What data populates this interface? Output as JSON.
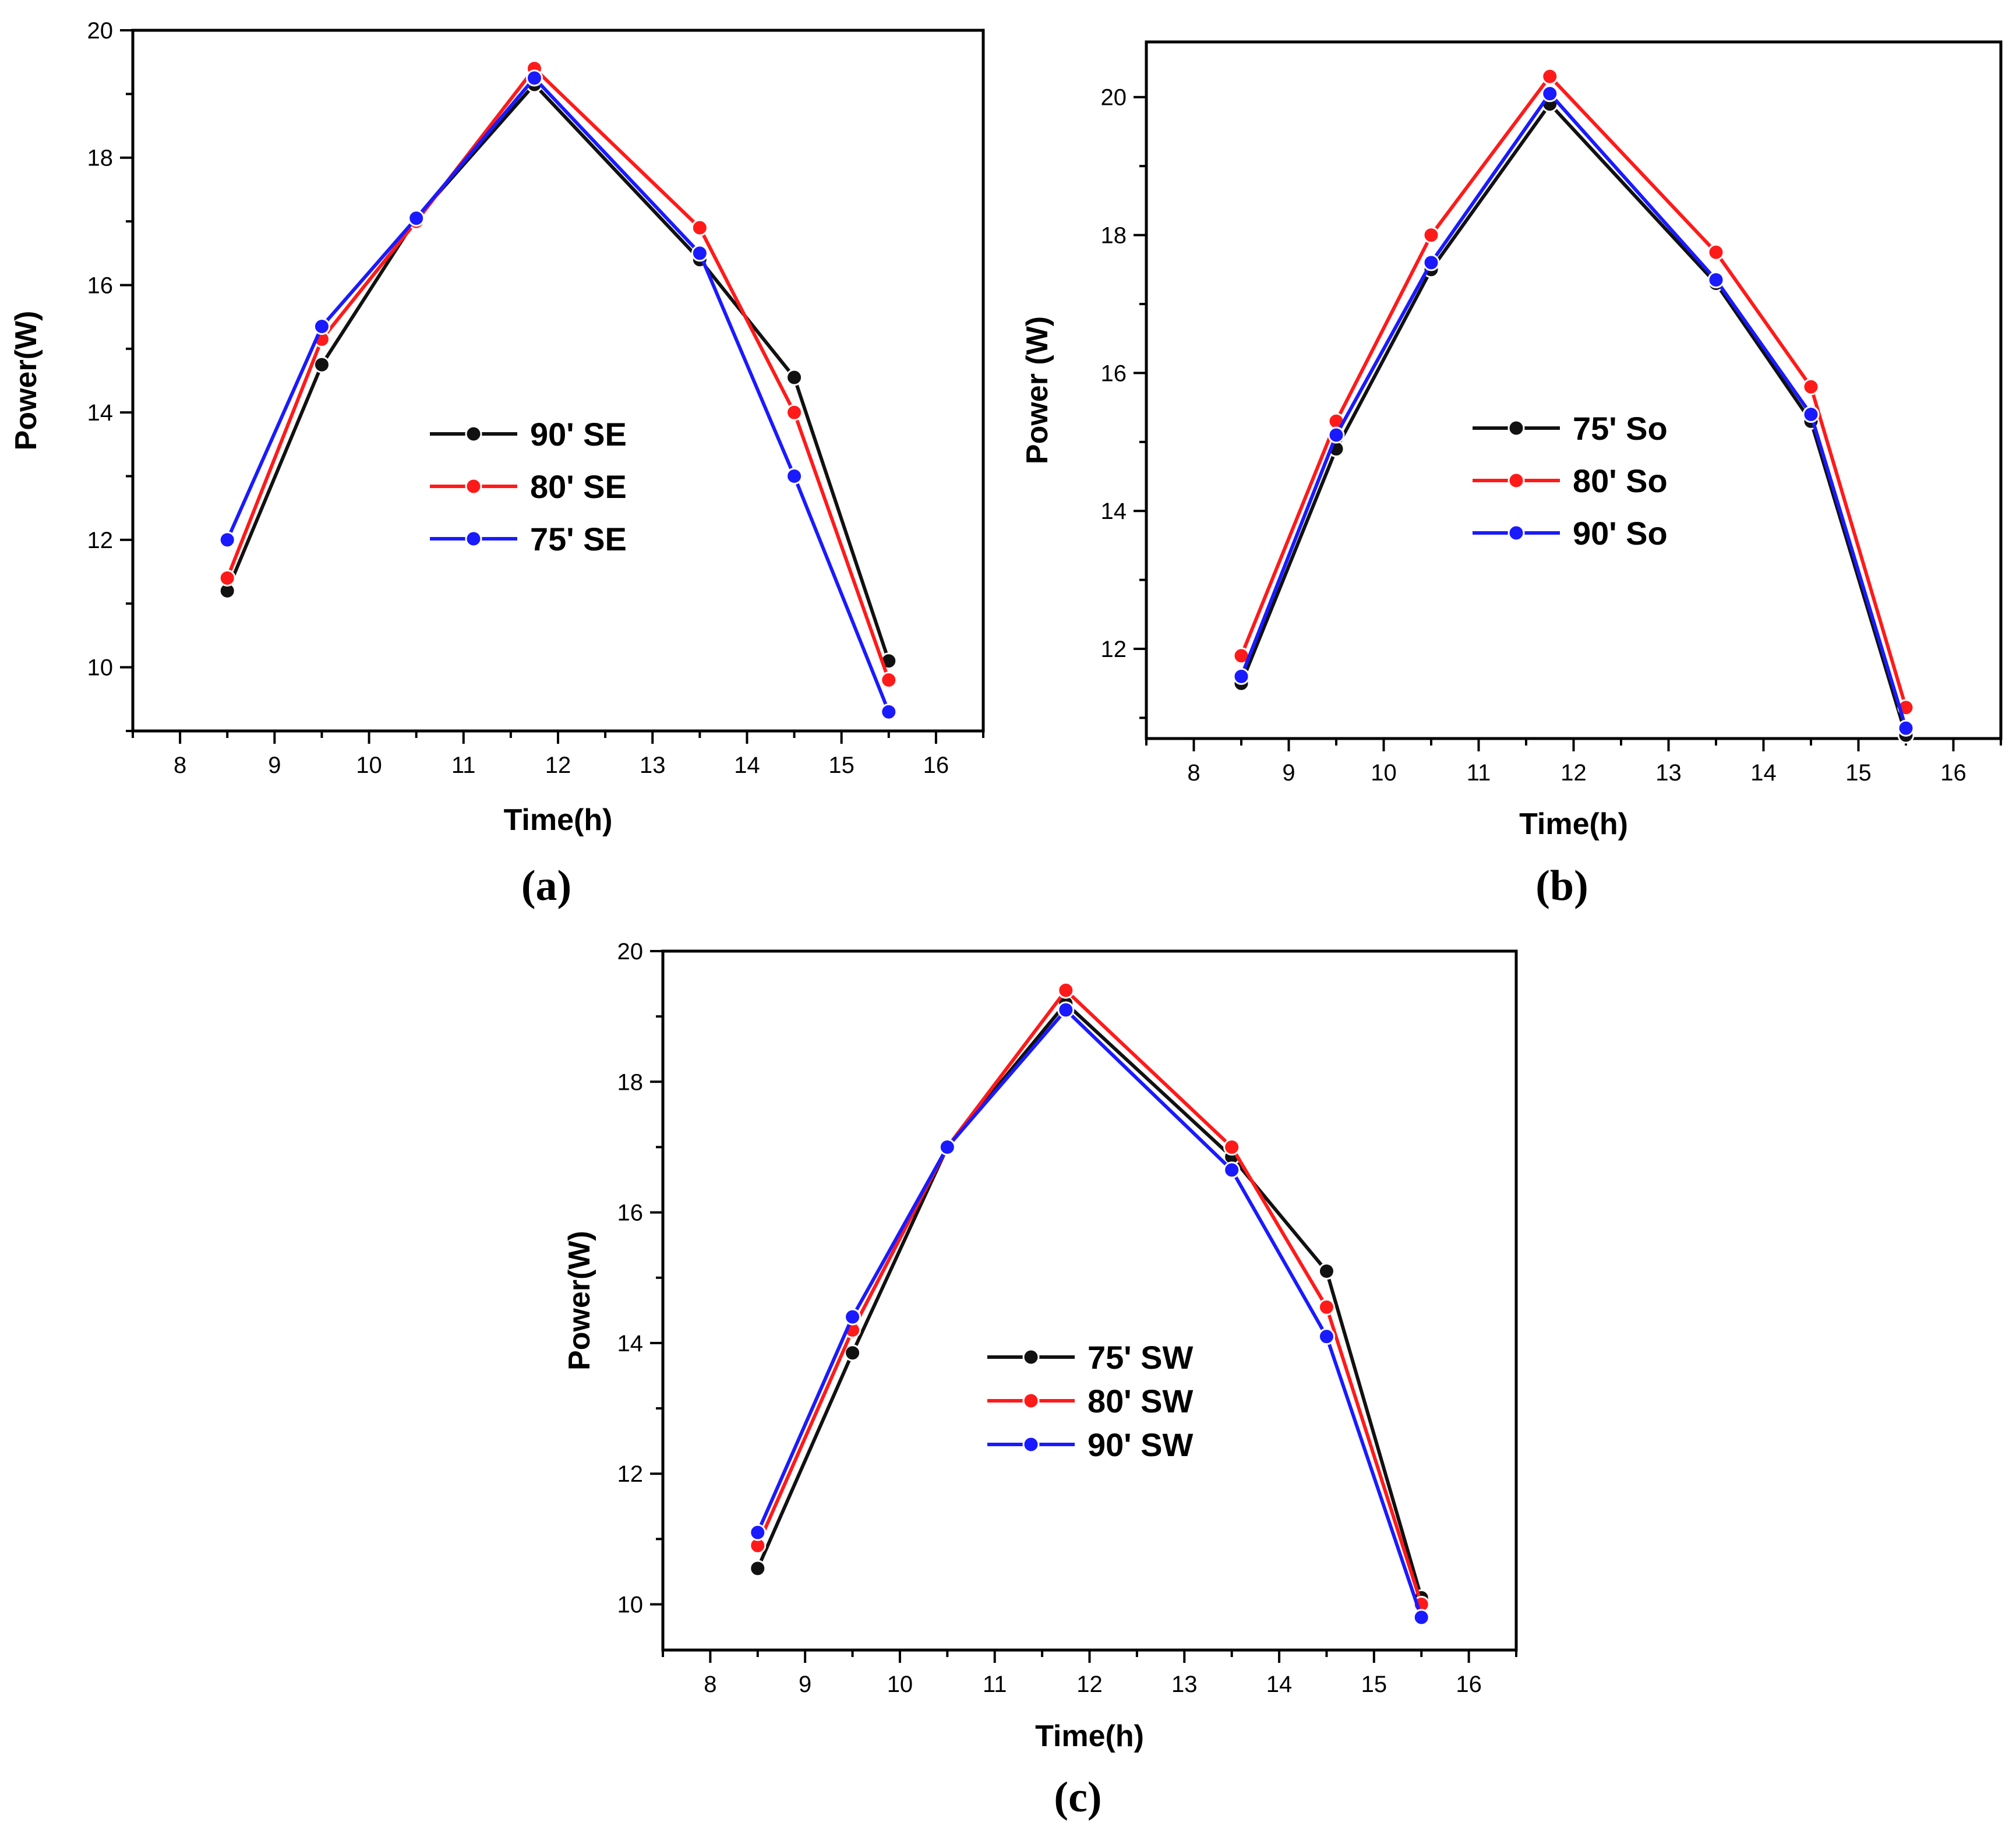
{
  "colors": {
    "black": "#111111",
    "red": "#ff1a1a",
    "blue": "#1a1aff"
  },
  "chart_data": [
    {
      "type": "line",
      "panel_label": "(a)",
      "xlabel": "Time(h)",
      "ylabel": "Power(W)",
      "xlim": [
        7.5,
        16.5
      ],
      "ylim": [
        9,
        20
      ],
      "xticks": [
        "8",
        "9",
        "10",
        "11",
        "12",
        "13",
        "14",
        "15",
        "16"
      ],
      "yticks": [
        "10",
        "12",
        "14",
        "16",
        "18",
        "20"
      ],
      "x": [
        8.5,
        9.5,
        10.5,
        11.75,
        13.5,
        14.5,
        15.5
      ],
      "legend_position": "center",
      "series": [
        {
          "name": "90' SE",
          "color": "#111111",
          "values": [
            11.2,
            14.75,
            17.05,
            19.15,
            16.4,
            14.55,
            10.1
          ]
        },
        {
          "name": "80' SE",
          "color": "#ff1a1a",
          "values": [
            11.4,
            15.15,
            17.0,
            19.4,
            16.9,
            14.0,
            9.8
          ]
        },
        {
          "name": "75' SE",
          "color": "#1a1aff",
          "values": [
            12.0,
            15.35,
            17.05,
            19.25,
            16.5,
            13.0,
            9.3
          ]
        }
      ]
    },
    {
      "type": "line",
      "panel_label": "(b)",
      "xlabel": "Time(h)",
      "ylabel": "Power (W)",
      "xlim": [
        7.5,
        16.5
      ],
      "ylim": [
        10.7,
        20.8
      ],
      "xticks": [
        "8",
        "9",
        "10",
        "11",
        "12",
        "13",
        "14",
        "15",
        "16"
      ],
      "yticks": [
        "12",
        "14",
        "16",
        "18",
        "20"
      ],
      "x": [
        8.5,
        9.5,
        10.5,
        11.75,
        13.5,
        14.5,
        15.5
      ],
      "legend_position": "center",
      "series": [
        {
          "name": "75' So",
          "color": "#111111",
          "values": [
            11.5,
            14.9,
            17.5,
            19.9,
            17.3,
            15.3,
            10.75
          ]
        },
        {
          "name": "80' So",
          "color": "#ff1a1a",
          "values": [
            11.9,
            15.3,
            18.0,
            20.3,
            17.75,
            15.8,
            11.15
          ]
        },
        {
          "name": "90' So",
          "color": "#1a1aff",
          "values": [
            11.6,
            15.1,
            17.6,
            20.05,
            17.35,
            15.4,
            10.85
          ]
        }
      ]
    },
    {
      "type": "line",
      "panel_label": "(c)",
      "xlabel": "Time(h)",
      "ylabel": "Power(W)",
      "xlim": [
        7.5,
        16.5
      ],
      "ylim": [
        9.3,
        20
      ],
      "xticks": [
        "8",
        "9",
        "10",
        "11",
        "12",
        "13",
        "14",
        "15",
        "16"
      ],
      "yticks": [
        "10",
        "12",
        "14",
        "16",
        "18",
        "20"
      ],
      "x": [
        8.5,
        9.5,
        10.5,
        11.75,
        13.5,
        14.5,
        15.5
      ],
      "legend_position": "center-left",
      "series": [
        {
          "name": "75' SW",
          "color": "#111111",
          "values": [
            10.55,
            13.85,
            17.0,
            19.2,
            16.85,
            15.1,
            10.1
          ]
        },
        {
          "name": "80' SW",
          "color": "#ff1a1a",
          "values": [
            10.9,
            14.2,
            17.0,
            19.4,
            17.0,
            14.55,
            10.0
          ]
        },
        {
          "name": "90' SW",
          "color": "#1a1aff",
          "values": [
            11.1,
            14.4,
            17.0,
            19.1,
            16.65,
            14.1,
            9.8
          ]
        }
      ]
    }
  ]
}
